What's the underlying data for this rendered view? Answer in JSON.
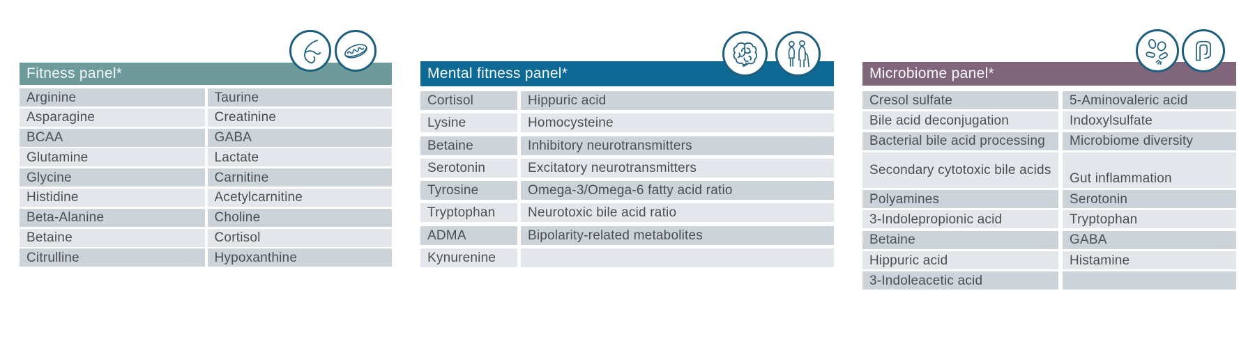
{
  "colors": {
    "icon_stroke": "#1d5e7d",
    "row_dark": "#ccd4da",
    "row_light": "#e3e7eb",
    "row_text": "#4d4e50",
    "header_text": "#f6f8f8"
  },
  "panels": [
    {
      "title": "Fitness panel*",
      "header_color": "#6d9b9b",
      "icons": [
        "flexed-arm",
        "mitochondria"
      ],
      "rows": [
        {
          "c1": "Arginine",
          "c2": "Taurine"
        },
        {
          "c1": "Asparagine",
          "c2": "Creatinine"
        },
        {
          "c1": "BCAA",
          "c2": "GABA"
        },
        {
          "c1": "Glutamine",
          "c2": "Lactate"
        },
        {
          "c1": "Glycine",
          "c2": "Carnitine"
        },
        {
          "c1": "Histidine",
          "c2": "Acetylcarnitine"
        },
        {
          "c1": "Beta-Alanine",
          "c2": "Choline"
        },
        {
          "c1": "Betaine",
          "c2": "Cortisol"
        },
        {
          "c1": "Citrulline",
          "c2": "Hypoxanthine"
        }
      ]
    },
    {
      "title": "Mental fitness panel*",
      "header_color": "#0e6994",
      "icons": [
        "brain",
        "elderly-couple"
      ],
      "rows": [
        {
          "c1": "Cortisol",
          "c2": "Hippuric acid"
        },
        {
          "c1": "Lysine",
          "c2": "Homocysteine"
        },
        {
          "c1": "Betaine",
          "c2": "Inhibitory neurotransmitters"
        },
        {
          "c1": "Serotonin",
          "c2": "Excitatory neurotransmitters"
        },
        {
          "c1": "Tyrosine",
          "c2": "Omega-3/Omega-6 fatty acid ratio"
        },
        {
          "c1": "Tryptophan",
          "c2": "Neurotoxic bile acid ratio"
        },
        {
          "c1": "ADMA",
          "c2": "Bipolarity-related metabolites"
        },
        {
          "c1": "Kynurenine",
          "c2": ""
        }
      ]
    },
    {
      "title": "Microbiome panel*",
      "header_color": "#80657b",
      "icons": [
        "microbes",
        "intestine"
      ],
      "rows": [
        {
          "c1": "Cresol sulfate",
          "c2": "5-Aminovaleric acid"
        },
        {
          "c1": "Bile acid deconjugation",
          "c2": "Indoxylsulfate"
        },
        {
          "c1": "Bacterial bile acid processing",
          "c2": "Microbiome diversity"
        },
        {
          "c1": "Secondary cytotoxic bile acids",
          "c2": "Gut inflammation",
          "tall": true
        },
        {
          "c1": "Polyamines",
          "c2": "Serotonin"
        },
        {
          "c1": "3-Indolepropionic acid",
          "c2": "Tryptophan"
        },
        {
          "c1": "Betaine",
          "c2": "GABA"
        },
        {
          "c1": "Hippuric acid",
          "c2": "Histamine"
        },
        {
          "c1": "3-Indoleacetic acid",
          "c2": ""
        }
      ]
    }
  ]
}
